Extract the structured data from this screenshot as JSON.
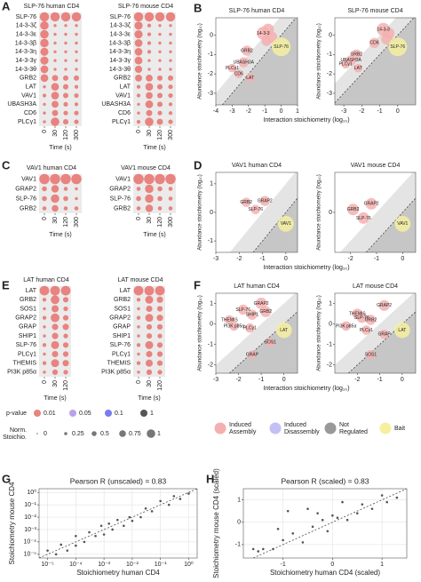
{
  "figure": {
    "panel_labels": [
      "A",
      "B",
      "C",
      "D",
      "E",
      "F",
      "G",
      "H"
    ],
    "legend": {
      "pvalue_title": "p-value",
      "pvalues": [
        {
          "value": 0.01,
          "color": "#e8837f"
        },
        {
          "value": 0.05,
          "color": "#b9a3e8"
        },
        {
          "value": 0.1,
          "color": "#7b7bf0"
        },
        {
          "value": 1,
          "color": "#555555"
        }
      ],
      "stoich_title": [
        "Norm.",
        "Stoichio."
      ],
      "stoich_values": [
        0,
        0.25,
        0.5,
        0.75,
        1
      ],
      "categories": [
        {
          "label": [
            "Induced",
            "Assembly"
          ],
          "color": "#f4b0b0"
        },
        {
          "label": [
            "Induced",
            "Disassembly"
          ],
          "color": "#c4c0f5"
        },
        {
          "label": [
            "Not",
            "Regulated"
          ],
          "color": "#999999"
        },
        {
          "label": [
            "Bait"
          ],
          "color": "#f5f0a0"
        }
      ]
    }
  },
  "chart_data": [
    {
      "type": "dotgrid",
      "title": "SLP-76 human CD4",
      "xlabel": "Time (s)",
      "color": "#e8837f",
      "bait_color": "#d62728",
      "categories": [
        "SLP-76",
        "14-3-3ζ",
        "14-3-3ε",
        "14-3-3β",
        "14-3-3η",
        "14-3-3γ",
        "14-3-3θ",
        "GRB2",
        "LAT",
        "VAV1",
        "UBASH3A",
        "CD6",
        "PLCγ1"
      ],
      "x_categories": [
        "0",
        "30",
        "120",
        "300"
      ],
      "values": [
        [
          1,
          1,
          1,
          1
        ],
        [
          0.9,
          0.2,
          0.2,
          0.2
        ],
        [
          0.9,
          0.2,
          0.2,
          0.2
        ],
        [
          0.9,
          0.2,
          0.2,
          0.2
        ],
        [
          0.85,
          0.2,
          0.2,
          0.2
        ],
        [
          0.85,
          0.2,
          0.2,
          0.2
        ],
        [
          0.8,
          0.2,
          0.2,
          0.2
        ],
        [
          0.8,
          0.6,
          0.5,
          0.5
        ],
        [
          0.2,
          0.8,
          0.5,
          0.3
        ],
        [
          0.3,
          0.8,
          0.5,
          0.4
        ],
        [
          0.2,
          0.7,
          0.4,
          0.3
        ],
        [
          0.2,
          0.6,
          0.4,
          0.4
        ],
        [
          0.2,
          0.9,
          0.5,
          0.4
        ]
      ]
    },
    {
      "type": "dotgrid",
      "title": "SLP-76 mouse CD4",
      "xlabel": "Time (s)",
      "color": "#e8837f",
      "bait_color": "#d62728",
      "categories": [
        "SLP-76",
        "14-3-3ζ",
        "14-3-3ε",
        "14-3-3β",
        "14-3-3η",
        "14-3-3γ",
        "14-3-3θ",
        "GRB2",
        "LAT",
        "VAV1",
        "UBASH3A",
        "CD6",
        "PLCγ1"
      ],
      "x_categories": [
        "0",
        "30",
        "120",
        "300"
      ],
      "values": [
        [
          1,
          1,
          1,
          1
        ],
        [
          0.85,
          0.3,
          0.2,
          0.2
        ],
        [
          0.85,
          0.3,
          0.2,
          0.2
        ],
        [
          0.8,
          0.3,
          0.2,
          0.2
        ],
        [
          0.8,
          0.3,
          0.2,
          0.2
        ],
        [
          0.8,
          0.2,
          0.2,
          0.2
        ],
        [
          0.75,
          0.2,
          0.2,
          0.2
        ],
        [
          0.7,
          0.7,
          0.5,
          0.5
        ],
        [
          0.3,
          0.8,
          0.5,
          0.4
        ],
        [
          0.3,
          0.7,
          0.5,
          0.4
        ],
        [
          0.2,
          0.8,
          0.5,
          0.3
        ],
        [
          0.2,
          0.6,
          0.4,
          0.3
        ],
        [
          0.3,
          0.9,
          0.6,
          0.4
        ]
      ]
    },
    {
      "type": "scatter",
      "title": "SLP-76 human CD4",
      "xlabel": "Interaction stoichiometry (log₁₀)",
      "ylabel": "Abundance stoichiometry (log₁₀)",
      "shading": true,
      "diagonal": true,
      "xlim": [
        -4,
        1
      ],
      "ylim": [
        -3.6,
        0.9
      ],
      "xticks": [
        -4,
        -3,
        -2,
        -1,
        0,
        1
      ],
      "yticks": [
        -3,
        -2,
        -1,
        0
      ],
      "series": [
        {
          "color": "#f4b0b0",
          "x": [
            -1.1,
            -0.8,
            -0.6,
            -0.9,
            -2.1,
            -2.3,
            -3.0,
            -2.6,
            -1.9
          ],
          "values": [
            0.1,
            0.3,
            -0.1,
            -0.3,
            -0.8,
            -1.4,
            -1.7,
            -2.0,
            -2.2
          ],
          "sizes": [
            0.6,
            0.5,
            0.5,
            0.4,
            0.4,
            0.4,
            0.3,
            0.3,
            0.3
          ],
          "labels": [
            "14-3-3",
            null,
            null,
            null,
            "GRB2",
            "UBASH3A",
            "PLCγ1",
            "CD6",
            "LAT"
          ]
        },
        {
          "color": "#f5f0a0",
          "x": [
            0
          ],
          "values": [
            -0.6
          ],
          "sizes": [
            1
          ],
          "labels": [
            "SLP-76"
          ]
        }
      ]
    },
    {
      "type": "scatter",
      "title": "SLP-76 mouse CD4",
      "ylabel": "Abundance stoichiometry (log₁₀)",
      "shading": true,
      "diagonal": true,
      "xlim": [
        -3.5,
        1
      ],
      "ylim": [
        -3.6,
        0.9
      ],
      "xticks": [
        -3,
        -2,
        -1,
        0
      ],
      "yticks": [
        -3,
        -2,
        -1,
        0
      ],
      "series": [
        {
          "color": "#f4b0b0",
          "x": [
            -0.8,
            -0.5,
            -0.6,
            -2.3,
            -2.6,
            -2.9,
            -2.2,
            -1.3
          ],
          "values": [
            0.3,
            0.1,
            -0.2,
            -1.0,
            -1.3,
            -1.5,
            -1.7,
            -0.4
          ],
          "sizes": [
            0.6,
            0.5,
            0.5,
            0.4,
            0.4,
            0.3,
            0.3,
            0.4
          ],
          "labels": [
            "14-3-3",
            null,
            null,
            "GRB2",
            "UBASH3A",
            "PLCγ1",
            "LAT",
            "CD6"
          ]
        },
        {
          "color": "#f5f0a0",
          "x": [
            0
          ],
          "values": [
            -0.6
          ],
          "sizes": [
            1
          ],
          "labels": [
            "SLP-76"
          ]
        }
      ]
    },
    {
      "type": "dotgrid",
      "title": "VAV1 human CD4",
      "xlabel": "Time (s)",
      "color": "#e8837f",
      "bait_color": "#d62728",
      "categories": [
        "VAV1",
        "GRAP2",
        "SLP-76",
        "GRB2"
      ],
      "x_categories": [
        "0",
        "30",
        "120",
        "300"
      ],
      "values": [
        [
          1,
          1,
          1,
          1
        ],
        [
          0.4,
          0.7,
          0.3,
          0.2
        ],
        [
          0.4,
          0.8,
          0.4,
          0.2
        ],
        [
          0.3,
          0.6,
          0.3,
          0.3
        ]
      ]
    },
    {
      "type": "dotgrid",
      "title": "VAV1 mouse CD4",
      "xlabel": "Time (s)",
      "color": "#e8837f",
      "bait_color": "#d62728",
      "categories": [
        "VAV1",
        "GRAP2",
        "SLP-76",
        "GRB2"
      ],
      "x_categories": [
        "0",
        "30",
        "120",
        "300"
      ],
      "values": [
        [
          1,
          1,
          1,
          1
        ],
        [
          0.3,
          0.8,
          0.4,
          0.3
        ],
        [
          0.4,
          0.8,
          0.4,
          0.3
        ],
        [
          0.3,
          0.7,
          0.3,
          0.3
        ]
      ]
    },
    {
      "type": "scatter",
      "title": "VAV1 human CD4",
      "xlabel": "Interaction stoichiometry (log₁₀)",
      "ylabel": "Abundance stoichiometry (log₁₀)",
      "shading": true,
      "diagonal": true,
      "xlim": [
        -3,
        0.5
      ],
      "ylim": [
        -1.4,
        1.4
      ],
      "xticks": [
        -3,
        -2,
        -1,
        0
      ],
      "yticks": [
        -1,
        0,
        1
      ],
      "series": [
        {
          "color": "#f4b0b0",
          "x": [
            -1.7,
            -0.9,
            -1.3
          ],
          "values": [
            0.35,
            0.4,
            0.1
          ],
          "sizes": [
            0.35,
            0.4,
            0.35
          ],
          "labels": [
            "GRB2",
            "GRAP2",
            "SLP-76"
          ]
        },
        {
          "color": "#f5f0a0",
          "x": [
            0
          ],
          "values": [
            -0.4
          ],
          "sizes": [
            0.8
          ],
          "labels": [
            "VAV1"
          ]
        }
      ]
    },
    {
      "type": "scatter",
      "title": "VAV1 mouse CD4",
      "ylabel": "Abundance stoichiometry (log₁₀)",
      "shading": true,
      "diagonal": true,
      "xlim": [
        -2.6,
        0.5
      ],
      "ylim": [
        -1.4,
        1.4
      ],
      "xticks": [
        -2,
        -1,
        0
      ],
      "yticks": [
        0
      ],
      "series": [
        {
          "color": "#f4b0b0",
          "x": [
            -1.9,
            -1.2,
            -1.5
          ],
          "values": [
            0.1,
            0.3,
            -0.2
          ],
          "sizes": [
            0.5,
            0.5,
            0.5
          ],
          "labels": [
            "GRB2",
            "GRAP2",
            "SLP-76"
          ]
        },
        {
          "color": "#f5f0a0",
          "x": [
            0
          ],
          "values": [
            -0.4
          ],
          "sizes": [
            0.8
          ],
          "labels": [
            "VAV1"
          ]
        }
      ]
    },
    {
      "type": "dotgrid",
      "title": "LAT human CD4",
      "xlabel": "Time (s)",
      "color": "#e8837f",
      "bait_color": "#d62728",
      "categories": [
        "LAT",
        "GRB2",
        "SOS1",
        "GRAP2",
        "GRAP",
        "SHIP1",
        "SLP-76",
        "PLCγ1",
        "THEMIS",
        "PI3K p85α"
      ],
      "x_categories": [
        "0",
        "30",
        "120"
      ],
      "values": [
        [
          1,
          1,
          1
        ],
        [
          0.3,
          0.9,
          0.5
        ],
        [
          0.2,
          0.7,
          0.4
        ],
        [
          0.3,
          0.9,
          0.5
        ],
        [
          0.2,
          0.6,
          0.6
        ],
        [
          0.2,
          0.6,
          0.4
        ],
        [
          0.3,
          0.8,
          0.5
        ],
        [
          0.2,
          0.6,
          0.5
        ],
        [
          0.3,
          0.8,
          0.6
        ],
        [
          0.2,
          0.5,
          0.4
        ]
      ]
    },
    {
      "type": "dotgrid",
      "title": "LAT mouse CD4",
      "xlabel": "Time (s)",
      "color": "#e8837f",
      "bait_color": "#d62728",
      "categories": [
        "LAT",
        "GRB2",
        "SOS1",
        "GRAP2",
        "GRAP",
        "SHIP1",
        "SLP-76",
        "PLCγ1",
        "THEMIS",
        "PI3K p85α"
      ],
      "x_categories": [
        "0",
        "30",
        "120"
      ],
      "values": [
        [
          1,
          1,
          1
        ],
        [
          0.3,
          0.8,
          0.6
        ],
        [
          0.2,
          0.6,
          0.5
        ],
        [
          0.3,
          0.8,
          0.6
        ],
        [
          0.2,
          0.5,
          0.5
        ],
        [
          0.2,
          0.5,
          0.4
        ],
        [
          0.3,
          0.8,
          0.5
        ],
        [
          0.2,
          0.6,
          0.5
        ],
        [
          0.3,
          0.7,
          0.5
        ],
        [
          0.2,
          0.5,
          0.4
        ]
      ]
    },
    {
      "type": "scatter",
      "title": "LAT human CD4",
      "xlabel": "Interaction stoichiometry (log₁₀)",
      "ylabel": "Abundance stoichiometry (log₁₀)",
      "shading": true,
      "diagonal": true,
      "xlim": [
        -3,
        0.6
      ],
      "ylim": [
        -2.4,
        1.5
      ],
      "xticks": [
        -3,
        -2,
        -1,
        0
      ],
      "yticks": [
        -2,
        -1,
        0,
        1
      ],
      "series": [
        {
          "color": "#f4b0b0",
          "x": [
            -1.0,
            -0.8,
            -1.8,
            -1.4,
            -2.4,
            -2.2,
            -1.5,
            -1.4,
            -0.6
          ],
          "values": [
            1.0,
            0.6,
            0.7,
            0.45,
            0.2,
            -0.1,
            -0.2,
            -1.5,
            -0.9
          ],
          "sizes": [
            0.5,
            0.45,
            0.4,
            0.4,
            0.35,
            0.35,
            0.35,
            0.3,
            0.3
          ],
          "labels": [
            "GRAP2",
            "GRB2",
            "SLP-76",
            "SHIP1",
            "THEMIS",
            "PI3K p85α",
            "PLCγ1",
            "GRAP",
            "SOS1"
          ]
        },
        {
          "color": "#f5f0a0",
          "x": [
            0
          ],
          "values": [
            -0.3
          ],
          "sizes": [
            0.8
          ],
          "labels": [
            "LAT"
          ]
        }
      ]
    },
    {
      "type": "scatter",
      "title": "LAT mouse CD4",
      "ylabel": "Abundance stoichiometry (log₁₀)",
      "shading": true,
      "diagonal": true,
      "xlim": [
        -3,
        0.6
      ],
      "ylim": [
        -2.4,
        1.5
      ],
      "xticks": [
        -2,
        -1,
        0
      ],
      "yticks": [
        -2,
        -1,
        0,
        1
      ],
      "series": [
        {
          "color": "#f4b0b0",
          "x": [
            -2.0,
            -0.8,
            -1.8,
            -1.4,
            -2.5,
            -1.6,
            -0.8,
            -1.4
          ],
          "values": [
            0.5,
            0.9,
            0.3,
            0.2,
            -0.1,
            -0.3,
            -0.5,
            -1.5
          ],
          "sizes": [
            0.4,
            0.45,
            0.4,
            0.4,
            0.35,
            0.35,
            0.35,
            0.35
          ],
          "labels": [
            "THEMIS",
            "GRAP2",
            "SLP-76",
            "GRB2",
            "PI3K p85α",
            "PLCγ1",
            "GRAP",
            "SOS1"
          ]
        },
        {
          "color": "#f5f0a0",
          "x": [
            0
          ],
          "values": [
            -0.3
          ],
          "sizes": [
            0.8
          ],
          "labels": [
            "LAT"
          ]
        }
      ]
    },
    {
      "type": "scatter",
      "title": "Pearson R (unscaled) = 0.83",
      "xlabel": "Stoichiometry human CD4",
      "ylabel": "Stoichiometry mouse CD4",
      "log": true,
      "grid": true,
      "diagonal": true,
      "xlim": [
        5e-06,
        2
      ],
      "ylim": [
        5e-06,
        2
      ],
      "xticks": [
        {
          "value": 1e-05,
          "label": "10⁻⁵"
        },
        {
          "value": 0.0001,
          "label": "10⁻⁴"
        },
        {
          "value": 0.001,
          "label": "10⁻³"
        },
        {
          "value": 0.01,
          "label": "10⁻²"
        },
        {
          "value": 0.1,
          "label": "10⁻¹"
        },
        {
          "value": 1,
          "label": "10⁰"
        }
      ],
      "yticks": [
        {
          "value": 1e-05,
          "label": "10⁻⁵"
        },
        {
          "value": 0.0001,
          "label": "10⁻⁴"
        },
        {
          "value": 0.001,
          "label": "10⁻³"
        },
        {
          "value": 0.01,
          "label": "10⁻²"
        },
        {
          "value": 0.1,
          "label": "10⁻¹"
        },
        {
          "value": 1,
          "label": "10⁰"
        }
      ],
      "series": [
        {
          "color": "#555555",
          "x": [
            1e-05,
            2e-05,
            3e-05,
            5e-05,
            0.0001,
            0.0001,
            0.0002,
            0.0003,
            0.0005,
            0.0008,
            0.001,
            0.0015,
            0.002,
            0.003,
            0.005,
            0.008,
            0.01,
            0.02,
            0.03,
            0.05,
            0.1,
            0.2,
            0.3,
            0.5,
            1
          ],
          "values": [
            2e-05,
            1e-05,
            6e-05,
            2e-05,
            0.0003,
            5e-05,
            0.0001,
            0.0006,
            0.0003,
            0.002,
            0.0004,
            0.003,
            0.001,
            0.006,
            0.002,
            0.01,
            0.005,
            0.01,
            0.05,
            0.03,
            0.2,
            0.1,
            0.5,
            0.3,
            0.8
          ]
        }
      ]
    },
    {
      "type": "scatter",
      "title": "Pearson R (scaled) = 0.83",
      "xlabel": "Stoichiometry human CD4 (scaled)",
      "ylabel": "Stoichiometry mouse CD4 (scaled)",
      "grid": true,
      "diagonal": true,
      "xlim": [
        -1.8,
        1.5
      ],
      "ylim": [
        -1.6,
        1.5
      ],
      "xticks": [
        -1,
        0,
        1
      ],
      "yticks": [
        -1,
        0,
        1
      ],
      "series": [
        {
          "color": "#555555",
          "x": [
            -1.6,
            -1.5,
            -1.4,
            -1.2,
            -1.1,
            -1,
            -0.9,
            -0.8,
            -0.6,
            -0.5,
            -0.4,
            -0.3,
            -0.2,
            -0.1,
            0,
            0.1,
            0.2,
            0.3,
            0.5,
            0.6,
            0.8,
            1,
            1.1,
            1.3
          ],
          "values": [
            -1.2,
            -1.3,
            -1.2,
            -1.2,
            -0.3,
            -0.8,
            0.5,
            -0.5,
            -0.9,
            0.6,
            -0.2,
            0.4,
            0.1,
            -0.4,
            0.3,
            0.2,
            0.9,
            0.1,
            0.4,
            0.8,
            0.6,
            1.2,
            0.9,
            1.1
          ]
        }
      ]
    }
  ]
}
